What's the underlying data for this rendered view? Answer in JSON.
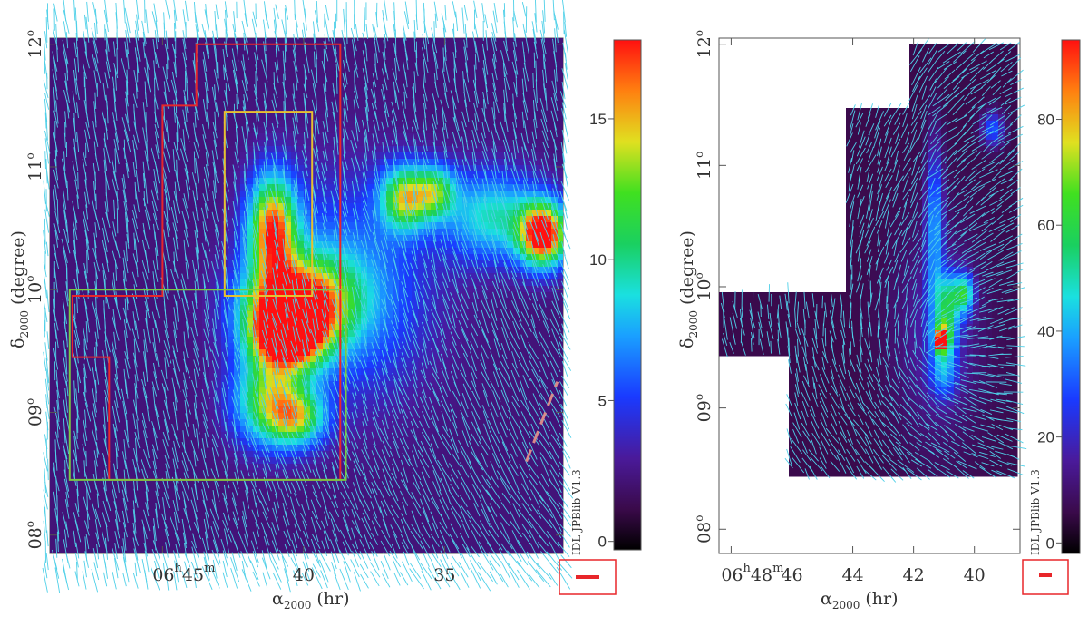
{
  "chart_data": [
    {
      "type": "heatmap",
      "name": "left-map",
      "xlabel": "α",
      "xlabel_sub": "2000",
      "xlabel_unit": "(hr)",
      "ylabel": "δ",
      "ylabel_sub": "2000",
      "ylabel_unit": "(degree)",
      "x_ticks": [
        {
          "value": 45,
          "main": "06",
          "sup1": "h",
          "mid": "45",
          "sup2": "m"
        },
        {
          "value": 40,
          "main": "40"
        },
        {
          "value": 35,
          "main": "35"
        }
      ],
      "x_range_minutes": [
        49,
        30.8
      ],
      "y_range_degrees": [
        7.85,
        12.05
      ],
      "y_ticks": [
        {
          "value": 8,
          "main": "08",
          "sup": "o"
        },
        {
          "value": 9,
          "main": "09",
          "sup": "o"
        },
        {
          "value": 10,
          "main": "10",
          "sup": "o"
        },
        {
          "value": 11,
          "main": "11",
          "sup": "o"
        },
        {
          "value": 12,
          "main": "12",
          "sup": "o"
        }
      ],
      "colorbar": {
        "min": -0.3,
        "max": 17.8,
        "ticks": [
          0,
          5,
          10,
          15
        ],
        "tick_labels": [
          "0",
          "5",
          "10",
          "15"
        ]
      },
      "blobs": [
        {
          "ra_min": 40.6,
          "dec": 9.65,
          "peak": 17,
          "sx": 0.9,
          "sy": 0.2
        },
        {
          "ra_min": 40.2,
          "dec": 9.9,
          "peak": 13,
          "sx": 1.3,
          "sy": 0.25
        },
        {
          "ra_min": 41.1,
          "dec": 10.5,
          "peak": 14,
          "sx": 0.6,
          "sy": 0.3
        },
        {
          "ra_min": 41.2,
          "dec": 9.1,
          "peak": 10,
          "sx": 0.9,
          "sy": 0.25
        },
        {
          "ra_min": 40.2,
          "dec": 8.95,
          "peak": 8,
          "sx": 0.7,
          "sy": 0.15
        },
        {
          "ra_min": 36.4,
          "dec": 10.75,
          "peak": 11,
          "sx": 0.6,
          "sy": 0.18
        },
        {
          "ra_min": 35.3,
          "dec": 10.8,
          "peak": 8,
          "sx": 0.5,
          "sy": 0.15
        },
        {
          "ra_min": 31.5,
          "dec": 10.45,
          "peak": 17,
          "sx": 0.6,
          "sy": 0.18
        },
        {
          "ra_min": 33.3,
          "dec": 10.6,
          "peak": 7,
          "sx": 1.2,
          "sy": 0.25
        },
        {
          "ra_min": 38.5,
          "dec": 10.0,
          "peak": 5,
          "sx": 2.0,
          "sy": 0.6
        }
      ],
      "regions": [
        {
          "color": "#e8262a",
          "points": [
            [
              43.8,
              12.0
            ],
            [
              38.7,
              12.0
            ],
            [
              38.7,
              8.45
            ],
            [
              46.9,
              8.45
            ],
            [
              46.9,
              9.45
            ],
            [
              48.2,
              9.45
            ],
            [
              48.2,
              9.95
            ],
            [
              45.0,
              9.95
            ],
            [
              45.0,
              11.5
            ],
            [
              43.8,
              11.5
            ]
          ]
        },
        {
          "color": "#e8c030",
          "points": [
            [
              42.8,
              11.45
            ],
            [
              39.7,
              11.45
            ],
            [
              39.7,
              9.95
            ],
            [
              42.8,
              9.95
            ]
          ]
        },
        {
          "color": "#7ac943",
          "points": [
            [
              48.3,
              10.0
            ],
            [
              38.5,
              10.0
            ],
            [
              38.5,
              8.45
            ],
            [
              48.3,
              8.45
            ]
          ]
        }
      ],
      "dashed_line": {
        "color": "#d98a8a",
        "from": [
          32.1,
          8.6
        ],
        "to": [
          31.0,
          9.25
        ]
      },
      "credit": "IDL JPBlib V1.3"
    },
    {
      "type": "heatmap",
      "name": "right-map",
      "xlabel": "α",
      "xlabel_sub": "2000",
      "xlabel_unit": "(hr)",
      "ylabel": "δ",
      "ylabel_sub": "2000",
      "ylabel_unit": "(degree)",
      "x_ticks": [
        {
          "value": 48,
          "main": "06",
          "sup1": "h",
          "mid": "48",
          "sup2": "m"
        },
        {
          "value": 46,
          "main": "46"
        },
        {
          "value": 44,
          "main": "44"
        },
        {
          "value": 42,
          "main": "42"
        },
        {
          "value": 40,
          "main": "40"
        }
      ],
      "x_range_minutes": [
        48.4,
        38.5
      ],
      "y_range_degrees": [
        7.8,
        12.05
      ],
      "y_ticks": [
        {
          "value": 8,
          "main": "08",
          "sup": "o"
        },
        {
          "value": 9,
          "main": "09",
          "sup": "o"
        },
        {
          "value": 10,
          "main": "10",
          "sup": "o"
        },
        {
          "value": 11,
          "main": "11",
          "sup": "o"
        },
        {
          "value": 12,
          "main": "12",
          "sup": "o"
        }
      ],
      "colorbar": {
        "min": -2,
        "max": 95,
        "ticks": [
          0,
          20,
          40,
          60,
          80
        ],
        "tick_labels": [
          "0",
          "20",
          "40",
          "60",
          "80"
        ]
      },
      "footprint": [
        [
          42.1,
          12.0
        ],
        [
          38.5,
          12.0
        ],
        [
          38.5,
          8.45
        ],
        [
          46.1,
          8.45
        ],
        [
          46.1,
          9.45
        ],
        [
          48.4,
          9.45
        ],
        [
          48.4,
          9.95
        ],
        [
          44.2,
          9.95
        ],
        [
          44.2,
          11.5
        ],
        [
          42.1,
          11.5
        ]
      ],
      "blobs": [
        {
          "ra_min": 41.1,
          "dec": 9.55,
          "peak": 88,
          "sx": 0.1,
          "sy": 0.05
        },
        {
          "ra_min": 41.0,
          "dec": 9.6,
          "peak": 50,
          "sx": 0.25,
          "sy": 0.12
        },
        {
          "ra_min": 40.8,
          "dec": 9.9,
          "peak": 40,
          "sx": 0.35,
          "sy": 0.15
        },
        {
          "ra_min": 40.3,
          "dec": 9.95,
          "peak": 35,
          "sx": 0.2,
          "sy": 0.1
        },
        {
          "ra_min": 41.3,
          "dec": 10.5,
          "peak": 30,
          "sx": 0.2,
          "sy": 0.45
        },
        {
          "ra_min": 41.0,
          "dec": 9.3,
          "peak": 25,
          "sx": 0.3,
          "sy": 0.15
        },
        {
          "ra_min": 39.4,
          "dec": 11.3,
          "peak": 25,
          "sx": 0.25,
          "sy": 0.1
        },
        {
          "ra_min": 41.2,
          "dec": 9.6,
          "peak": 12,
          "sx": 1.0,
          "sy": 0.6
        }
      ],
      "credit": "IDL JPBlib V1.3"
    }
  ]
}
